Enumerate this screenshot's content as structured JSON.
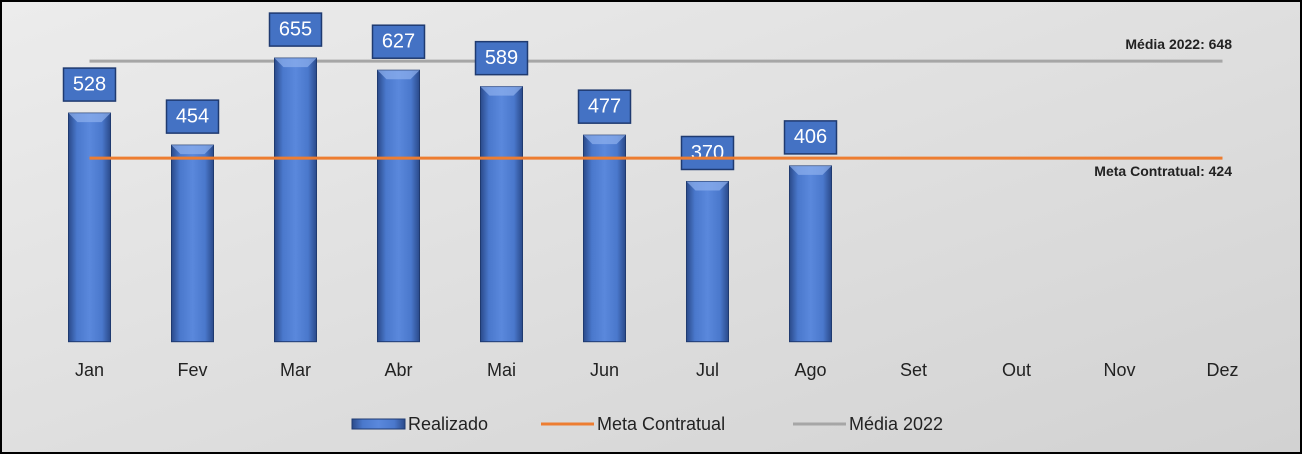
{
  "chart_data": {
    "type": "bar",
    "categories": [
      "Jan",
      "Fev",
      "Mar",
      "Abr",
      "Mai",
      "Jun",
      "Jul",
      "Ago",
      "Set",
      "Out",
      "Nov",
      "Dez"
    ],
    "series": [
      {
        "name": "Realizado",
        "type": "bar",
        "color": "#4472c4",
        "values": [
          528,
          454,
          655,
          627,
          589,
          477,
          370,
          406,
          null,
          null,
          null,
          null
        ]
      },
      {
        "name": "Meta Contratual",
        "type": "line",
        "color": "#ed7d31",
        "values": [
          424,
          424,
          424,
          424,
          424,
          424,
          424,
          424,
          424,
          424,
          424,
          424
        ]
      },
      {
        "name": "Média 2022",
        "type": "line",
        "color": "#a6a6a6",
        "values": [
          648,
          648,
          648,
          648,
          648,
          648,
          648,
          648,
          648,
          648,
          648,
          648
        ]
      }
    ],
    "annotations": [
      {
        "text": "Média 2022: 648",
        "series": 2
      },
      {
        "text": "Meta Contratual: 424",
        "series": 1
      }
    ]
  }
}
